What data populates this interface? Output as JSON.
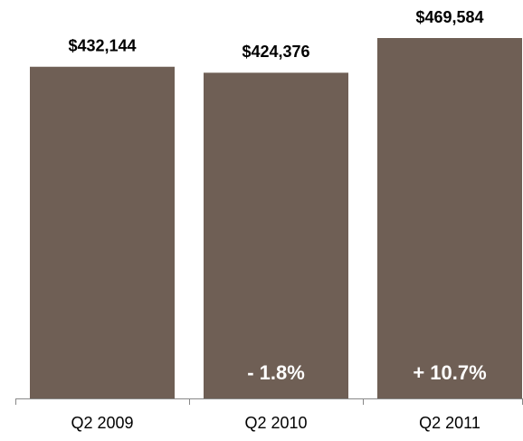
{
  "chart_data": {
    "type": "bar",
    "categories": [
      "Q2 2009",
      "Q2 2010",
      "Q2 2011"
    ],
    "values": [
      432144,
      424376,
      469584
    ],
    "value_labels": [
      "$432,144",
      "$424,376",
      "$469,584"
    ],
    "change_labels": [
      null,
      "- 1.8%",
      "+ 10.7%"
    ],
    "color": "#6f5f55"
  }
}
